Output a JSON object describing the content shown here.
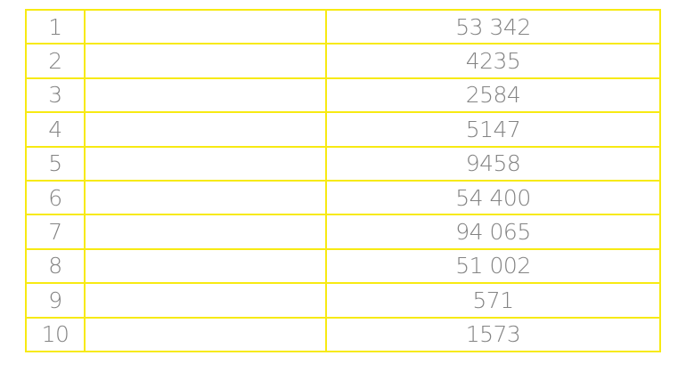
{
  "colors": {
    "border": "#f7ea12",
    "text": "#6e6e6e"
  },
  "rows": [
    {
      "index": "1",
      "label": "",
      "value": "53 342"
    },
    {
      "index": "2",
      "label": "",
      "value": "4235"
    },
    {
      "index": "3",
      "label": "",
      "value": "2584"
    },
    {
      "index": "4",
      "label": "",
      "value": "5147"
    },
    {
      "index": "5",
      "label": "",
      "value": "9458"
    },
    {
      "index": "6",
      "label": "",
      "value": "54 400"
    },
    {
      "index": "7",
      "label": "",
      "value": "94 065"
    },
    {
      "index": "8",
      "label": "",
      "value": "51 002"
    },
    {
      "index": "9",
      "label": "",
      "value": "571"
    },
    {
      "index": "10",
      "label": "",
      "value": "1573"
    }
  ]
}
